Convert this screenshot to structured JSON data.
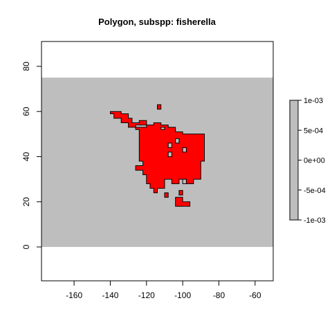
{
  "chart_data": {
    "type": "heatmap",
    "title": "Polygon, subspp: fisherella",
    "xlabel": "",
    "ylabel": "",
    "xlim": [
      -178,
      -50
    ],
    "ylim": [
      -15,
      91
    ],
    "x_ticks": [
      -160,
      -140,
      -120,
      -100,
      -80,
      -60
    ],
    "y_ticks": [
      0,
      20,
      40,
      60,
      80
    ],
    "raster_extent": {
      "xmin": -178,
      "xmax": -50,
      "ymin": 0,
      "ymax": 75
    },
    "background_value": 0,
    "polygon_fill": "#FF0000",
    "background_fill": "#BEBEBE",
    "legend": {
      "placement": "right",
      "range": [
        -0.001,
        0.001
      ],
      "ticks": [
        "1e-03",
        "5e-04",
        "0e+00",
        "-5e-04",
        "-1e-03"
      ],
      "fill": "#BEBEBE"
    },
    "polygon_outline": [
      [
        -140,
        60
      ],
      [
        -134,
        60
      ],
      [
        -134,
        59
      ],
      [
        -130,
        59
      ],
      [
        -130,
        57
      ],
      [
        -128,
        57
      ],
      [
        -128,
        55
      ],
      [
        -124,
        55
      ],
      [
        -124,
        56
      ],
      [
        -120,
        56
      ],
      [
        -120,
        54
      ],
      [
        -116,
        54
      ],
      [
        -116,
        55
      ],
      [
        -112,
        55
      ],
      [
        -112,
        54
      ],
      [
        -108,
        54
      ],
      [
        -108,
        53
      ],
      [
        -104,
        53
      ],
      [
        -104,
        51
      ],
      [
        -100,
        51
      ],
      [
        -100,
        50
      ],
      [
        -88,
        50
      ],
      [
        -88,
        38
      ],
      [
        -90,
        38
      ],
      [
        -90,
        30
      ],
      [
        -94,
        30
      ],
      [
        -94,
        28
      ],
      [
        -98,
        28
      ],
      [
        -98,
        30
      ],
      [
        -102,
        30
      ],
      [
        -102,
        28
      ],
      [
        -106,
        28
      ],
      [
        -106,
        30
      ],
      [
        -110,
        30
      ],
      [
        -110,
        26
      ],
      [
        -114,
        26
      ],
      [
        -114,
        24
      ],
      [
        -116,
        24
      ],
      [
        -116,
        26
      ],
      [
        -118,
        26
      ],
      [
        -118,
        28
      ],
      [
        -120,
        28
      ],
      [
        -120,
        32
      ],
      [
        -122,
        32
      ],
      [
        -122,
        34
      ],
      [
        -126,
        34
      ],
      [
        -126,
        36
      ],
      [
        -122,
        36
      ],
      [
        -122,
        38
      ],
      [
        -124,
        38
      ],
      [
        -124,
        52
      ],
      [
        -126,
        52
      ],
      [
        -126,
        53
      ],
      [
        -130,
        53
      ],
      [
        -130,
        55
      ],
      [
        -134,
        55
      ],
      [
        -134,
        57
      ],
      [
        -138,
        57
      ],
      [
        -138,
        59
      ],
      [
        -140,
        59
      ]
    ],
    "polygon_islands": [
      [
        [
          -114,
          63
        ],
        [
          -112,
          63
        ],
        [
          -112,
          61
        ],
        [
          -114,
          61
        ]
      ],
      [
        [
          -104,
          22
        ],
        [
          -100,
          22
        ],
        [
          -100,
          20
        ],
        [
          -96,
          20
        ],
        [
          -96,
          18
        ],
        [
          -104,
          18
        ]
      ],
      [
        [
          -110,
          24
        ],
        [
          -108,
          24
        ],
        [
          -108,
          22
        ],
        [
          -110,
          22
        ]
      ],
      [
        [
          -102,
          25
        ],
        [
          -100,
          25
        ],
        [
          -100,
          23
        ],
        [
          -102,
          23
        ]
      ]
    ],
    "polygon_holes": [
      [
        [
          -126,
          54
        ],
        [
          -120,
          54
        ],
        [
          -120,
          53
        ],
        [
          -126,
          53
        ]
      ],
      [
        [
          -112,
          53
        ],
        [
          -110,
          53
        ],
        [
          -110,
          52
        ],
        [
          -112,
          52
        ]
      ],
      [
        [
          -108,
          46
        ],
        [
          -106,
          46
        ],
        [
          -106,
          44
        ],
        [
          -108,
          44
        ]
      ],
      [
        [
          -108,
          42
        ],
        [
          -106,
          42
        ],
        [
          -106,
          40
        ],
        [
          -108,
          40
        ]
      ],
      [
        [
          -100,
          44
        ],
        [
          -98,
          44
        ],
        [
          -98,
          42
        ],
        [
          -100,
          42
        ]
      ],
      [
        [
          -104,
          48
        ],
        [
          -102,
          48
        ],
        [
          -102,
          46
        ],
        [
          -104,
          46
        ]
      ],
      [
        [
          -100,
          30
        ],
        [
          -98,
          30
        ],
        [
          -98,
          28
        ],
        [
          -100,
          28
        ]
      ]
    ]
  }
}
